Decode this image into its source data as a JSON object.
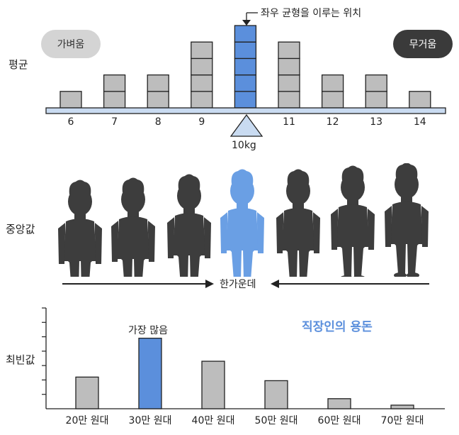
{
  "mean": {
    "row_label": "평균",
    "light_label": "가벼움",
    "heavy_label": "무거움",
    "balance_note": "좌우 균형을 이루는 위치",
    "fulcrum_label": "10kg",
    "ticks": [
      "6",
      "7",
      "8",
      "9",
      "10",
      "11",
      "12",
      "13",
      "14"
    ],
    "stack_heights": [
      1,
      2,
      2,
      4,
      5,
      4,
      2,
      2,
      1
    ],
    "highlight_index": 4,
    "colors": {
      "block": "#bdbdbd",
      "highlight": "#5b8fdc",
      "beam": "#c9dbf1"
    }
  },
  "median": {
    "row_label": "중앙값",
    "center_label": "한가운데",
    "person_count": 7,
    "highlight_index": 3,
    "colors": {
      "person": "#3d3d3d",
      "highlight": "#6a9fe4"
    }
  },
  "mode": {
    "row_label": "최빈값",
    "title": "직장인의 용돈",
    "peak_label": "가장 많음",
    "chart_data": {
      "type": "bar",
      "title": "직장인의 용돈",
      "categories": [
        "20만 원대",
        "30만 원대",
        "40만 원대",
        "50만 원대",
        "60만 원대",
        "70만 원대"
      ],
      "values": [
        4.4,
        9.8,
        6.6,
        3.9,
        1.4,
        0.5
      ],
      "ylim": [
        0,
        14
      ],
      "annotation": "가장 많음",
      "highlight_index": 1,
      "colors": {
        "bar": "#bdbdbd",
        "highlight": "#5b8fdc",
        "title": "#5b8fdc"
      }
    }
  }
}
